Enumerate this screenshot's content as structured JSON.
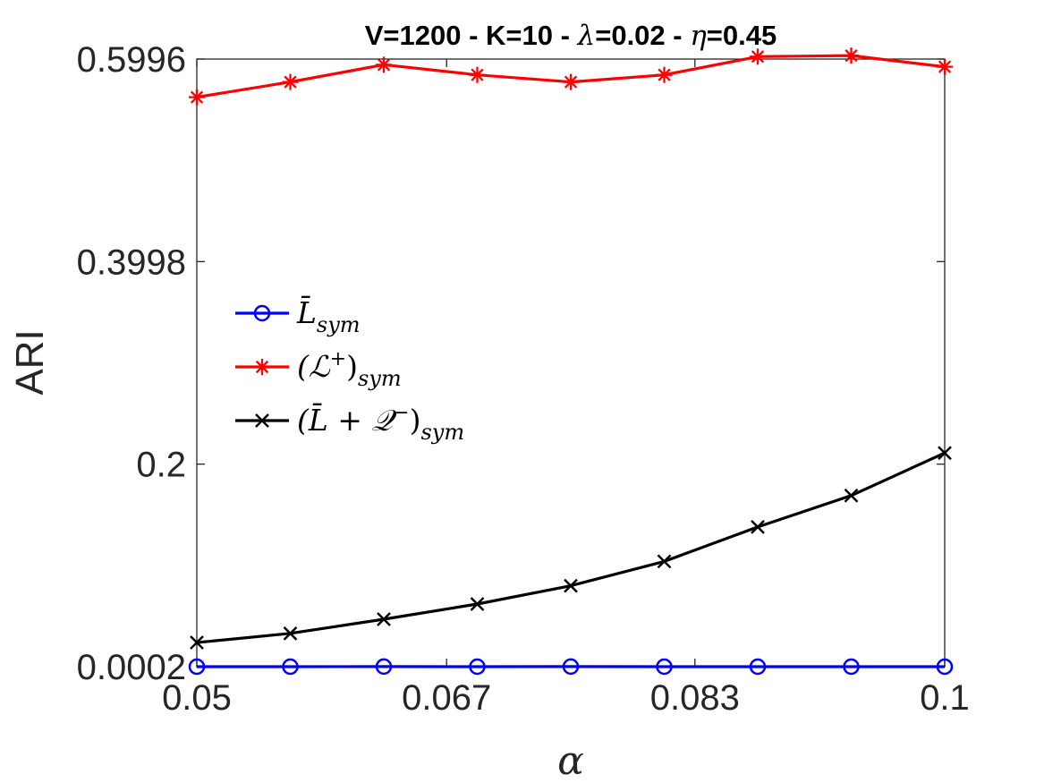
{
  "chart_data": {
    "type": "line",
    "title_prefix": "V=1200 - K=10 - ",
    "title_lambda_symbol": "λ",
    "title_lambda_value": "=0.02 - ",
    "title_eta_symbol": "η",
    "title_eta_value": "=0.45",
    "xlabel": "α",
    "ylabel": "ARI",
    "xlim": [
      0.05,
      0.1
    ],
    "ylim": [
      0.0002,
      0.5996
    ],
    "xticks": [
      0.05,
      0.0667,
      0.0833,
      0.1
    ],
    "xtick_labels": [
      "0.05",
      "0.067",
      "0.083",
      "0.1"
    ],
    "yticks": [
      0.0002,
      0.2,
      0.3998,
      0.5996
    ],
    "ytick_labels": [
      "0.0002",
      "0.2",
      "0.3998",
      "0.5996"
    ],
    "x": [
      0.05,
      0.05625,
      0.0625,
      0.06875,
      0.075,
      0.08125,
      0.0875,
      0.09375,
      0.1
    ],
    "series": [
      {
        "name": "L̄_sym",
        "legend_base": "L̄",
        "legend_sub": "sym",
        "color": "#0000ff",
        "marker": "circle",
        "values": [
          0.0002,
          0.0002,
          0.0003,
          0.0002,
          0.0003,
          0.0002,
          0.0002,
          0.0002,
          0.0002
        ]
      },
      {
        "name": "(L+)_sym",
        "legend_base": "(ℒ",
        "legend_sup": "+",
        "legend_close": ")",
        "legend_sub": "sym",
        "color": "#ff0000",
        "marker": "asterisk",
        "values": [
          0.562,
          0.577,
          0.594,
          0.584,
          0.577,
          0.584,
          0.602,
          0.603,
          0.592
        ]
      },
      {
        "name": "(L̄ + Q-)_sym",
        "legend_base": "(L̄ + 𝒬",
        "legend_sup": "−",
        "legend_close": ")",
        "legend_sub": "sym",
        "color": "#000000",
        "marker": "x",
        "values": [
          0.024,
          0.033,
          0.047,
          0.062,
          0.08,
          0.104,
          0.138,
          0.169,
          0.211
        ]
      }
    ],
    "legend_location": "west"
  }
}
